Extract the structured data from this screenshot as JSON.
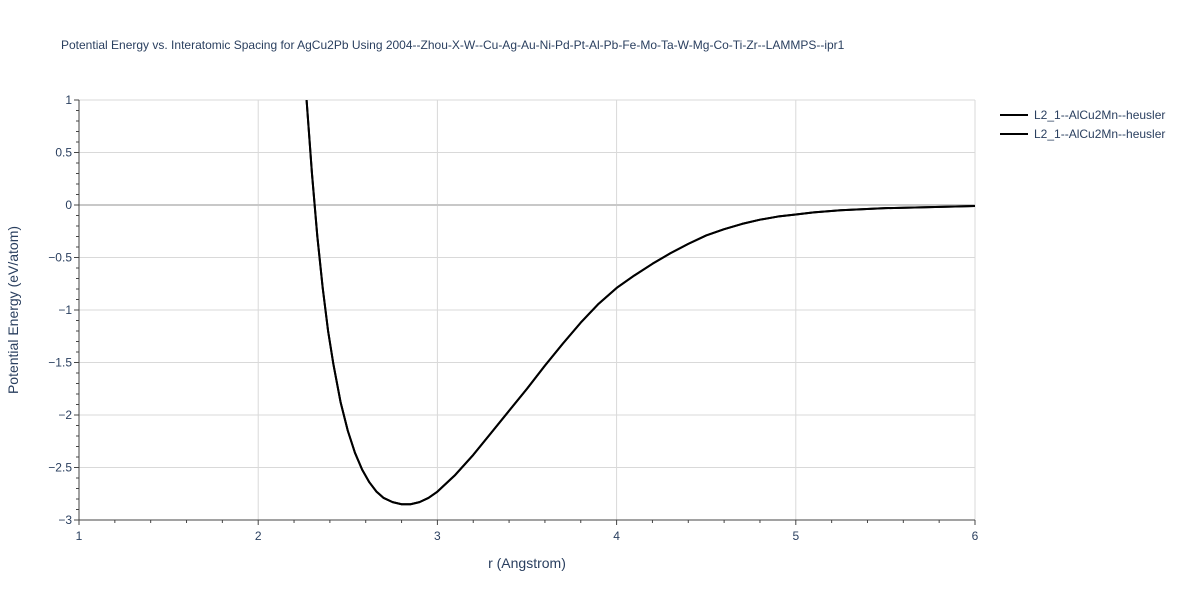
{
  "chart_data": {
    "type": "line",
    "title": "Potential Energy vs. Interatomic Spacing for AgCu2Pb Using 2004--Zhou-X-W--Cu-Ag-Au-Ni-Pd-Pt-Al-Pb-Fe-Mo-Ta-W-Mg-Co-Ti-Zr--LAMMPS--ipr1",
    "xlabel": "r (Angstrom)",
    "ylabel": "Potential Energy (eV/atom)",
    "xlim": [
      1,
      6
    ],
    "ylim": [
      -3,
      1
    ],
    "xticks": [
      1,
      2,
      3,
      4,
      5,
      6
    ],
    "yticks": [
      1,
      0.5,
      0,
      -0.5,
      -1,
      -1.5,
      -2,
      -2.5,
      -3
    ],
    "xtick_labels": [
      "1",
      "2",
      "3",
      "4",
      "5",
      "6"
    ],
    "ytick_labels": [
      "1",
      "0.5",
      "0",
      "−0.5",
      "−1",
      "−1.5",
      "−2",
      "−2.5",
      "−3"
    ],
    "grid": true,
    "legend_position": "top-right",
    "line_color": "#000000",
    "series": [
      {
        "name": "L2_1--AlCu2Mn--heusler",
        "x": [
          2.27,
          2.3,
          2.33,
          2.36,
          2.39,
          2.42,
          2.46,
          2.5,
          2.54,
          2.58,
          2.62,
          2.66,
          2.7,
          2.75,
          2.8,
          2.85,
          2.9,
          2.95,
          3.0,
          3.1,
          3.2,
          3.3,
          3.4,
          3.5,
          3.6,
          3.7,
          3.8,
          3.9,
          4.0,
          4.1,
          4.2,
          4.3,
          4.4,
          4.5,
          4.6,
          4.7,
          4.8,
          4.9,
          5.0,
          5.1,
          5.25,
          5.5,
          5.75,
          6.0
        ],
        "y": [
          1.0,
          0.3,
          -0.3,
          -0.79,
          -1.2,
          -1.52,
          -1.88,
          -2.15,
          -2.36,
          -2.52,
          -2.64,
          -2.73,
          -2.79,
          -2.83,
          -2.85,
          -2.85,
          -2.83,
          -2.79,
          -2.73,
          -2.57,
          -2.38,
          -2.17,
          -1.96,
          -1.75,
          -1.53,
          -1.32,
          -1.12,
          -0.94,
          -0.79,
          -0.67,
          -0.56,
          -0.46,
          -0.37,
          -0.29,
          -0.23,
          -0.18,
          -0.14,
          -0.11,
          -0.09,
          -0.07,
          -0.05,
          -0.03,
          -0.02,
          -0.01
        ]
      },
      {
        "name": "L2_1--AlCu2Mn--heusler",
        "x": [
          2.27,
          2.3,
          2.33,
          2.36,
          2.39,
          2.42,
          2.46,
          2.5,
          2.54,
          2.58,
          2.62,
          2.66,
          2.7,
          2.75,
          2.8,
          2.85,
          2.9,
          2.95,
          3.0,
          3.1,
          3.2,
          3.3,
          3.4,
          3.5,
          3.6,
          3.7,
          3.8,
          3.9,
          4.0,
          4.1,
          4.2,
          4.3,
          4.4,
          4.5,
          4.6,
          4.7,
          4.8,
          4.9,
          5.0,
          5.1,
          5.25,
          5.5,
          5.75,
          6.0
        ],
        "y": [
          1.0,
          0.3,
          -0.3,
          -0.79,
          -1.2,
          -1.52,
          -1.88,
          -2.15,
          -2.36,
          -2.52,
          -2.64,
          -2.73,
          -2.79,
          -2.83,
          -2.85,
          -2.85,
          -2.83,
          -2.79,
          -2.73,
          -2.57,
          -2.38,
          -2.17,
          -1.96,
          -1.75,
          -1.53,
          -1.32,
          -1.12,
          -0.94,
          -0.79,
          -0.67,
          -0.56,
          -0.46,
          -0.37,
          -0.29,
          -0.23,
          -0.18,
          -0.14,
          -0.11,
          -0.09,
          -0.07,
          -0.05,
          -0.03,
          -0.02,
          -0.01
        ]
      }
    ]
  }
}
